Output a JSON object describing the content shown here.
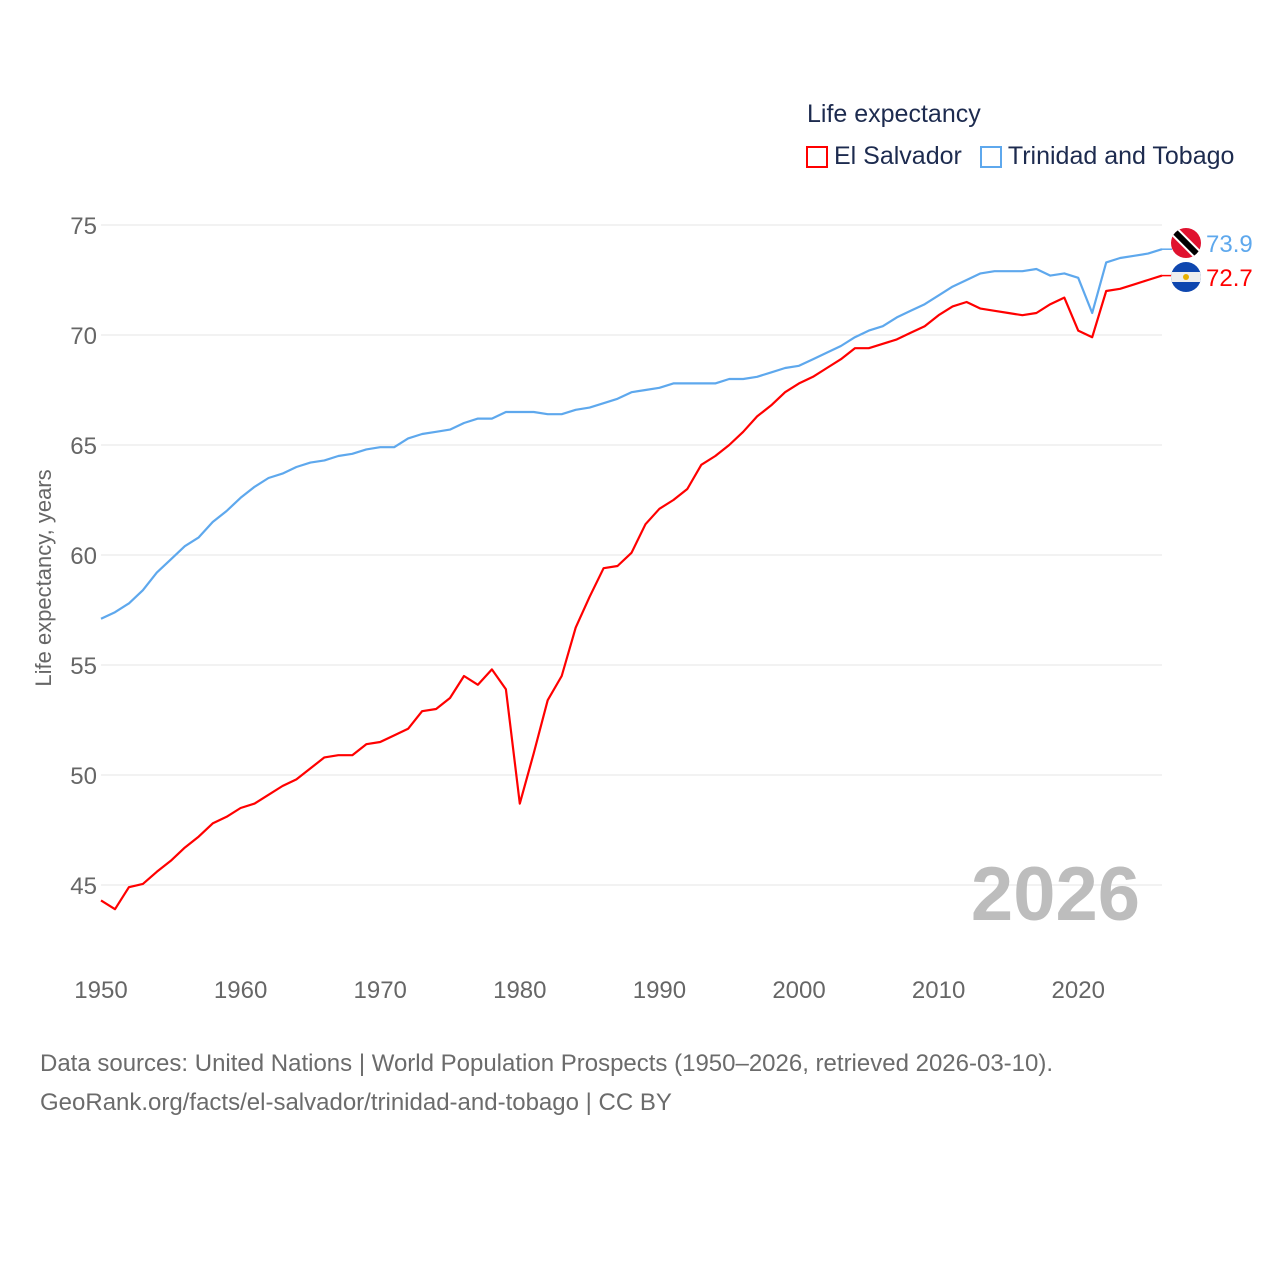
{
  "chart_data": {
    "type": "line",
    "title": "Life expectancy",
    "ylabel": "Life expectancy, years",
    "xlabel": "",
    "xlim": [
      1950,
      2026
    ],
    "ylim": [
      43,
      76
    ],
    "x_ticks": [
      1950,
      1960,
      1970,
      1980,
      1990,
      2000,
      2010,
      2020
    ],
    "y_ticks": [
      45,
      50,
      55,
      60,
      65,
      70,
      75
    ],
    "grid": true,
    "legend_position": "top-right",
    "current_year_label": "2026",
    "x": [
      1950,
      1951,
      1952,
      1953,
      1954,
      1955,
      1956,
      1957,
      1958,
      1959,
      1960,
      1961,
      1962,
      1963,
      1964,
      1965,
      1966,
      1967,
      1968,
      1969,
      1970,
      1971,
      1972,
      1973,
      1974,
      1975,
      1976,
      1977,
      1978,
      1979,
      1980,
      1981,
      1982,
      1983,
      1984,
      1985,
      1986,
      1987,
      1988,
      1989,
      1990,
      1991,
      1992,
      1993,
      1994,
      1995,
      1996,
      1997,
      1998,
      1999,
      2000,
      2001,
      2002,
      2003,
      2004,
      2005,
      2006,
      2007,
      2008,
      2009,
      2010,
      2011,
      2012,
      2013,
      2014,
      2015,
      2016,
      2017,
      2018,
      2019,
      2020,
      2021,
      2022,
      2023,
      2024,
      2025,
      2026
    ],
    "series": [
      {
        "name": "El Salvador",
        "color": "#ff0000",
        "end_label": "72.7",
        "flag": "el-salvador-flag",
        "values": [
          44.3,
          43.9,
          44.9,
          45.05,
          45.6,
          46.1,
          46.7,
          47.2,
          47.8,
          48.1,
          48.5,
          48.7,
          49.1,
          49.5,
          49.8,
          50.3,
          50.8,
          50.9,
          50.9,
          51.4,
          51.5,
          51.8,
          52.1,
          52.9,
          53.0,
          53.5,
          54.5,
          54.1,
          54.8,
          53.9,
          48.7,
          51.0,
          53.4,
          54.5,
          56.7,
          58.1,
          59.4,
          59.5,
          60.1,
          61.4,
          62.1,
          62.5,
          63.0,
          64.1,
          64.5,
          65.0,
          65.6,
          66.3,
          66.8,
          67.4,
          67.8,
          68.1,
          68.5,
          68.9,
          69.4,
          69.4,
          69.6,
          69.8,
          70.1,
          70.4,
          70.9,
          71.3,
          71.5,
          71.2,
          71.1,
          71.0,
          70.9,
          71.0,
          71.4,
          71.7,
          70.2,
          69.9,
          72.0,
          72.1,
          72.3,
          72.5,
          72.7
        ]
      },
      {
        "name": "Trinidad and Tobago",
        "color": "#5ea8ed",
        "end_label": "73.9",
        "flag": "trinidad-and-tobago-flag",
        "values": [
          57.1,
          57.4,
          57.8,
          58.4,
          59.2,
          59.8,
          60.4,
          60.8,
          61.5,
          62.0,
          62.6,
          63.1,
          63.5,
          63.7,
          64.0,
          64.2,
          64.3,
          64.5,
          64.6,
          64.8,
          64.9,
          64.9,
          65.3,
          65.5,
          65.6,
          65.7,
          66.0,
          66.2,
          66.2,
          66.5,
          66.5,
          66.5,
          66.4,
          66.4,
          66.6,
          66.7,
          66.9,
          67.1,
          67.4,
          67.5,
          67.6,
          67.8,
          67.8,
          67.8,
          67.8,
          68.0,
          68.0,
          68.1,
          68.3,
          68.5,
          68.6,
          68.9,
          69.2,
          69.5,
          69.9,
          70.2,
          70.4,
          70.8,
          71.1,
          71.4,
          71.8,
          72.2,
          72.5,
          72.8,
          72.9,
          72.9,
          72.9,
          73.0,
          72.7,
          72.8,
          72.6,
          71.0,
          73.3,
          73.5,
          73.6,
          73.7,
          73.9
        ]
      }
    ]
  },
  "footer": {
    "line1": "Data sources: United Nations | World Population Prospects (1950–2026, retrieved 2026-03-10).",
    "line2": "GeoRank.org/facts/el-salvador/trinidad-and-tobago | CC BY"
  }
}
